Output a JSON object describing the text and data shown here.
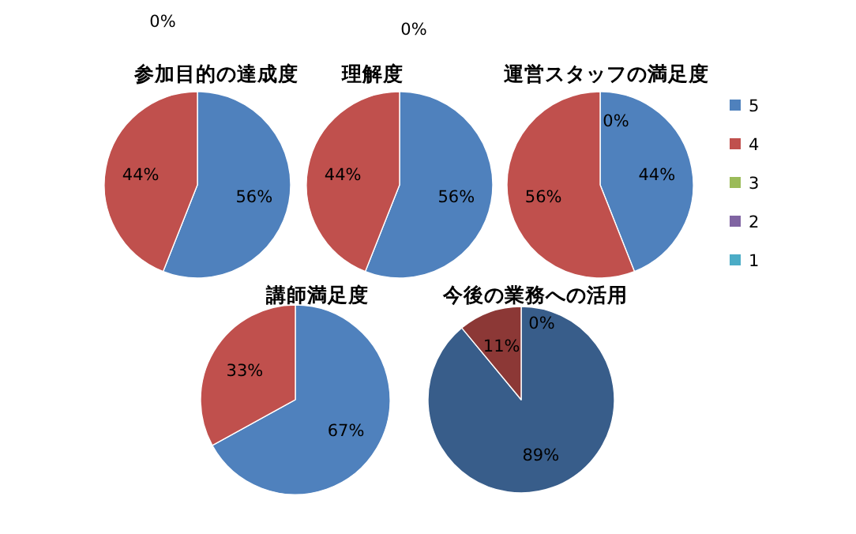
{
  "chart_data": [
    {
      "type": "pie",
      "title": "参加目的の達成度",
      "categories": [
        null,
        null,
        null,
        null,
        null
      ],
      "values": [
        56,
        44,
        0,
        0,
        0
      ],
      "colors": [
        "#4f81bd",
        "#c0504d",
        "#9bbb59",
        "#8064a2",
        "#4bacc6"
      ],
      "value_labels": [
        "56%",
        "44%",
        "0%",
        null,
        null
      ],
      "legend": false
    },
    {
      "type": "pie",
      "title": "理解度",
      "categories": [
        null,
        null,
        null,
        null,
        null
      ],
      "values": [
        56,
        44,
        0,
        0,
        0
      ],
      "colors": [
        "#4f81bd",
        "#c0504d",
        "#9bbb59",
        "#8064a2",
        "#4bacc6"
      ],
      "value_labels": [
        "56%",
        "44%",
        "0%",
        null,
        null
      ],
      "legend": false
    },
    {
      "type": "pie",
      "title": "運営スタッフの満足度",
      "categories": [
        "5",
        "4",
        "3",
        "2",
        "1"
      ],
      "values": [
        44,
        56,
        0,
        0,
        0
      ],
      "colors": [
        "#4f81bd",
        "#c0504d",
        "#9bbb59",
        "#8064a2",
        "#4bacc6"
      ],
      "value_labels": [
        "44%",
        "56%",
        "0%",
        null,
        null
      ],
      "legend": "right"
    },
    {
      "type": "pie",
      "title": "講師満足度",
      "categories": [
        null,
        null,
        null,
        null,
        null
      ],
      "values": [
        67,
        33,
        0,
        0,
        0
      ],
      "colors": [
        "#4f81bd",
        "#c0504d",
        "#9bbb59",
        "#8064a2",
        "#4bacc6"
      ],
      "value_labels": [
        "67%",
        "33%",
        null,
        null,
        null
      ],
      "legend": false
    },
    {
      "type": "pie",
      "title": "今後の業務への活用",
      "categories": [
        null,
        null,
        null,
        null,
        null
      ],
      "values": [
        89,
        11,
        0,
        0,
        0
      ],
      "colors": [
        "#385d8a",
        "#8c3836",
        "#9bbb59",
        "#8064a2",
        "#4bacc6"
      ],
      "value_labels": [
        "89%",
        "11%",
        "0%",
        null,
        null
      ],
      "legend": false
    }
  ]
}
